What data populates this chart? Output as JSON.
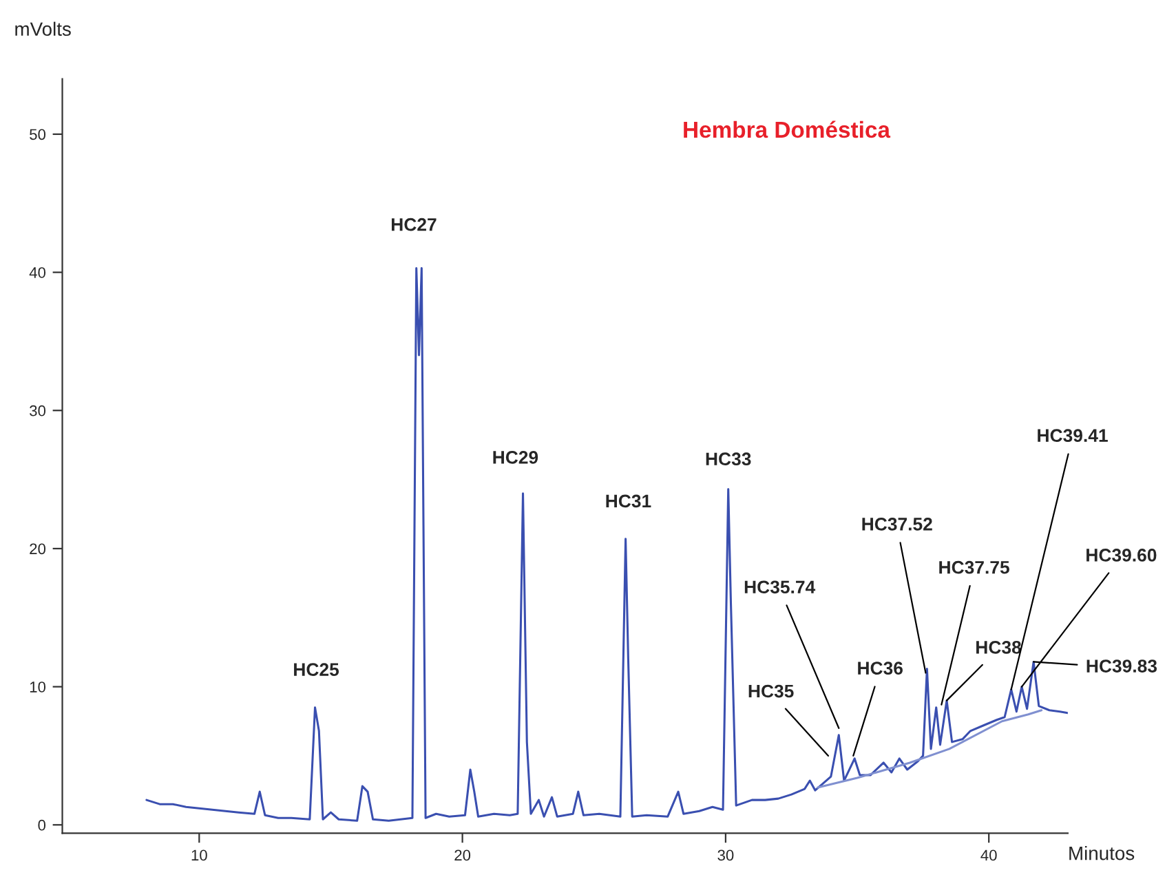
{
  "chart_data": {
    "type": "line",
    "title": "Hembra Doméstica",
    "xlabel": "Minutos",
    "ylabel": "mVolts",
    "xlim": [
      4.8,
      43
    ],
    "xticks": [
      10,
      20,
      30,
      40
    ],
    "ylim": [
      -0.6,
      54
    ],
    "yticks": [
      0,
      10,
      20,
      30,
      40,
      50
    ],
    "grid": false,
    "legend": false,
    "series": [
      {
        "color": "#3a4fb0",
        "x": [
          8.0,
          8.5,
          9.0,
          9.5,
          10,
          10.5,
          11,
          11.5,
          12.1,
          12.3,
          12.5,
          13,
          13.5,
          14.2,
          14.4,
          14.55,
          14.7,
          15,
          15.3,
          16.0,
          16.2,
          16.4,
          16.6,
          17.2,
          18.1,
          18.25,
          18.35,
          18.45,
          18.6,
          19.0,
          19.5,
          20.1,
          20.3,
          20.45,
          20.6,
          21.2,
          21.8,
          22.1,
          22.3,
          22.45,
          22.6,
          22.9,
          23.1,
          23.4,
          23.6,
          24.2,
          24.4,
          24.6,
          25.2,
          26.0,
          26.2,
          26.3,
          26.45,
          27,
          27.8,
          28.2,
          28.4,
          29.0,
          29.5,
          29.9,
          30.1,
          30.2,
          30.4,
          31,
          31.5,
          32,
          32.5,
          33.0,
          33.2,
          33.4,
          34.0,
          34.3,
          34.5,
          34.9,
          35.1,
          35.5,
          36.0,
          36.3,
          36.6,
          36.9,
          37.3,
          37.5,
          37.65,
          37.8,
          38.0,
          38.15,
          38.4,
          38.6,
          39.0,
          39.3,
          39.8,
          40.3,
          40.6,
          40.85,
          41.05,
          41.25,
          41.45,
          41.7,
          41.9,
          42.3,
          42.7,
          43.0
        ],
        "values": [
          1.8,
          1.5,
          1.5,
          1.3,
          1.2,
          1.1,
          1.0,
          0.9,
          0.8,
          2.4,
          0.7,
          0.5,
          0.5,
          0.4,
          8.5,
          6.8,
          0.4,
          0.9,
          0.4,
          0.3,
          2.8,
          2.4,
          0.4,
          0.3,
          0.5,
          40.3,
          34,
          40.3,
          0.5,
          0.8,
          0.6,
          0.7,
          4.0,
          2.4,
          0.6,
          0.8,
          0.7,
          0.8,
          24.0,
          6.0,
          0.8,
          1.8,
          0.6,
          2.0,
          0.6,
          0.8,
          2.4,
          0.7,
          0.8,
          0.6,
          20.7,
          12,
          0.6,
          0.7,
          0.6,
          2.4,
          0.8,
          1.0,
          1.3,
          1.1,
          24.3,
          16,
          1.4,
          1.8,
          1.8,
          1.9,
          2.2,
          2.6,
          3.2,
          2.5,
          3.5,
          6.5,
          3.2,
          4.8,
          3.6,
          3.6,
          4.5,
          3.8,
          4.8,
          4.0,
          4.6,
          5.0,
          11.3,
          5.5,
          8.5,
          5.8,
          9.0,
          6.0,
          6.2,
          6.8,
          7.2,
          7.6,
          7.8,
          9.8,
          8.2,
          10.0,
          8.4,
          11.8,
          8.6,
          8.3,
          8.2,
          8.1
        ]
      },
      {
        "color": "#8090d0",
        "x": [
          33.5,
          35,
          37,
          38.5,
          40.5,
          41.5,
          42
        ],
        "values": [
          2.7,
          3.4,
          4.5,
          5.5,
          7.5,
          8.0,
          8.3
        ]
      }
    ],
    "annotations": [
      {
        "text": "HC25",
        "x": 14.44,
        "y": 8.5
      },
      {
        "text": "HC27",
        "x": 18.37,
        "y": 40.3
      },
      {
        "text": "HC29",
        "x": 22.3,
        "y": 24.0
      },
      {
        "text": "HC31",
        "x": 26.3,
        "y": 20.7
      },
      {
        "text": "HC33",
        "x": 30.1,
        "y": 24.3
      },
      {
        "text": "HC35",
        "x": 33.9,
        "y": 5.0
      },
      {
        "text": "HC35.74",
        "x": 34.3,
        "y": 7.0
      },
      {
        "text": "HC36",
        "x": 34.85,
        "y": 5.0
      },
      {
        "text": "HC37.52",
        "x": 37.6,
        "y": 11.0
      },
      {
        "text": "HC37.75",
        "x": 38.2,
        "y": 8.7
      },
      {
        "text": "HC38",
        "x": 38.4,
        "y": 9.0
      },
      {
        "text": "HC39.41",
        "x": 40.85,
        "y": 9.8
      },
      {
        "text": "HC39.60",
        "x": 41.25,
        "y": 10.0
      },
      {
        "text": "HC39.83",
        "x": 41.7,
        "y": 11.8
      }
    ]
  }
}
